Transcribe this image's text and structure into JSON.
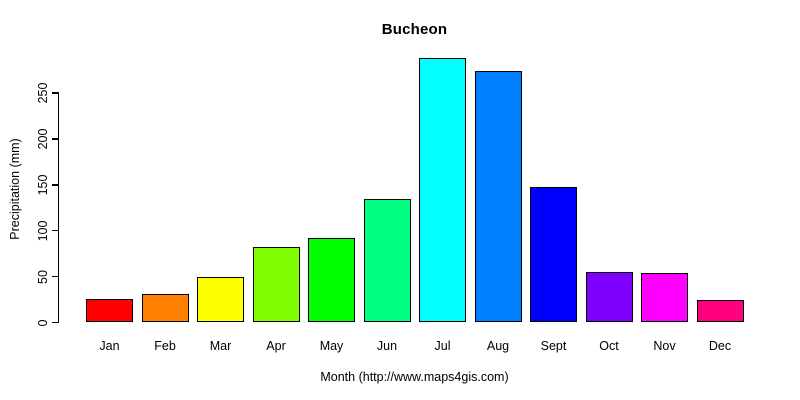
{
  "chart_data": {
    "type": "bar",
    "title": "Bucheon",
    "xlabel": "Month (http://www.maps4gis.com)",
    "ylabel": "Precipitation (mm)",
    "categories": [
      "Jan",
      "Feb",
      "Mar",
      "Apr",
      "May",
      "Jun",
      "Jul",
      "Aug",
      "Sept",
      "Oct",
      "Nov",
      "Dec"
    ],
    "values": [
      26,
      31,
      50,
      82,
      92,
      134,
      288,
      274,
      148,
      55,
      54,
      25
    ],
    "bar_colors": [
      "#FF0000",
      "#FF8000",
      "#FFFF00",
      "#80FF00",
      "#00FF00",
      "#00FF80",
      "#00FFFF",
      "#0080FF",
      "#0000FF",
      "#8000FF",
      "#FF00FF",
      "#FF0080"
    ],
    "bar_border_color": "#000000",
    "yticks": [
      0,
      50,
      100,
      150,
      200,
      250
    ],
    "ylim": [
      0,
      290
    ],
    "grid": false,
    "legend_position": "none",
    "background_color": "#FFFFFF",
    "axis_color": "#000000"
  }
}
